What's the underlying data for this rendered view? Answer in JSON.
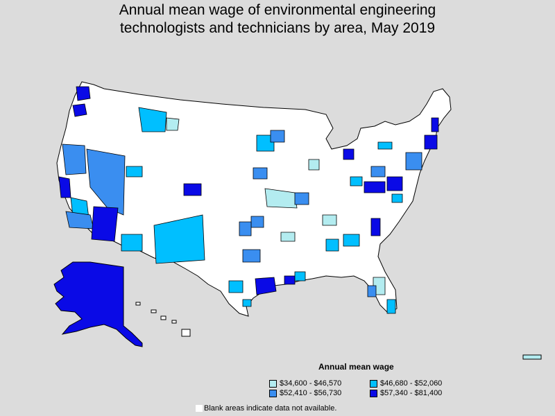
{
  "title_line1": "Annual mean wage of environmental engineering",
  "title_line2": "technologists and technicians by area, May 2019",
  "legend": {
    "title": "Annual mean wage",
    "items": [
      {
        "label": "$34,600 - $46,570",
        "color": "#b3ecf0"
      },
      {
        "label": "$46,680 - $52,060",
        "color": "#00bfff"
      },
      {
        "label": "$52,410 - $56,730",
        "color": "#3a8ef0"
      },
      {
        "label": "$57,340 - $81,400",
        "color": "#0a0ae6"
      }
    ]
  },
  "blank_note": "Blank areas indicate data not available.",
  "colors": {
    "background": "#dcdcdc",
    "land": "#ffffff",
    "border": "#000000"
  }
}
